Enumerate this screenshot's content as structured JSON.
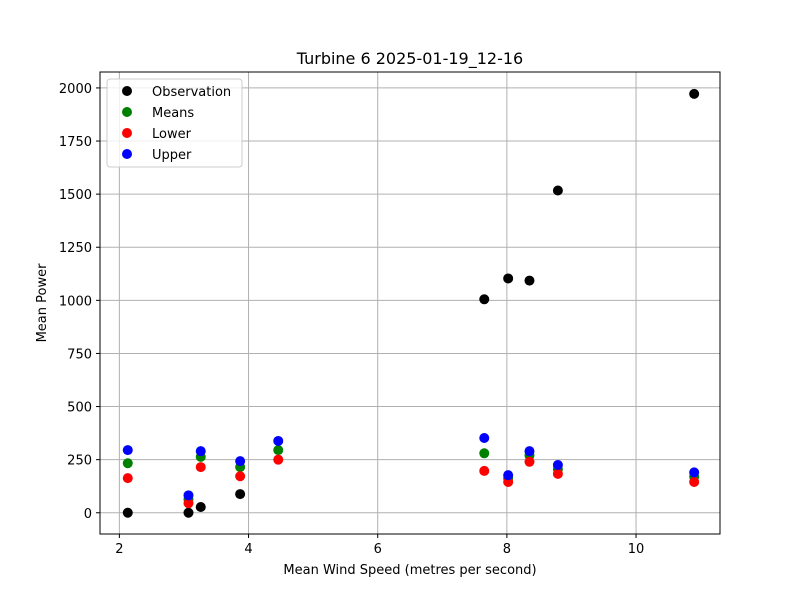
{
  "chart_data": {
    "type": "scatter",
    "title": "Turbine 6 2025-01-19_12-16",
    "xlabel": "Mean Wind Speed (metres per second)",
    "ylabel": "Mean Power",
    "xlim": [
      1.7,
      11.3
    ],
    "ylim": [
      -100,
      2075
    ],
    "xticks": [
      2,
      4,
      6,
      8,
      10
    ],
    "yticks": [
      0,
      250,
      500,
      750,
      1000,
      1250,
      1500,
      1750,
      2000
    ],
    "grid": true,
    "legend_position": "top-left",
    "series": [
      {
        "name": "Observation",
        "color": "#000000",
        "points": [
          [
            2.13,
            0
          ],
          [
            3.07,
            0
          ],
          [
            3.26,
            27
          ],
          [
            3.87,
            88
          ],
          [
            7.65,
            1005
          ],
          [
            8.02,
            1103
          ],
          [
            8.35,
            1093
          ],
          [
            8.79,
            1517
          ],
          [
            10.9,
            1972
          ]
        ]
      },
      {
        "name": "Means",
        "color": "#008000",
        "points": [
          [
            2.13,
            233
          ],
          [
            3.07,
            63
          ],
          [
            3.26,
            263
          ],
          [
            3.87,
            215
          ],
          [
            4.46,
            295
          ],
          [
            7.65,
            280
          ],
          [
            8.02,
            162
          ],
          [
            8.35,
            270
          ],
          [
            8.79,
            205
          ],
          [
            10.9,
            170
          ]
        ]
      },
      {
        "name": "Lower",
        "color": "#ff0000",
        "points": [
          [
            2.13,
            163
          ],
          [
            3.07,
            45
          ],
          [
            3.26,
            215
          ],
          [
            3.87,
            172
          ],
          [
            4.46,
            250
          ],
          [
            7.65,
            197
          ],
          [
            8.02,
            145
          ],
          [
            8.35,
            240
          ],
          [
            8.79,
            183
          ],
          [
            10.9,
            145
          ]
        ]
      },
      {
        "name": "Upper",
        "color": "#0000ff",
        "points": [
          [
            2.13,
            295
          ],
          [
            3.07,
            82
          ],
          [
            3.26,
            290
          ],
          [
            3.87,
            243
          ],
          [
            4.46,
            338
          ],
          [
            7.65,
            352
          ],
          [
            8.02,
            177
          ],
          [
            8.35,
            290
          ],
          [
            8.79,
            225
          ],
          [
            10.9,
            190
          ]
        ]
      }
    ]
  }
}
